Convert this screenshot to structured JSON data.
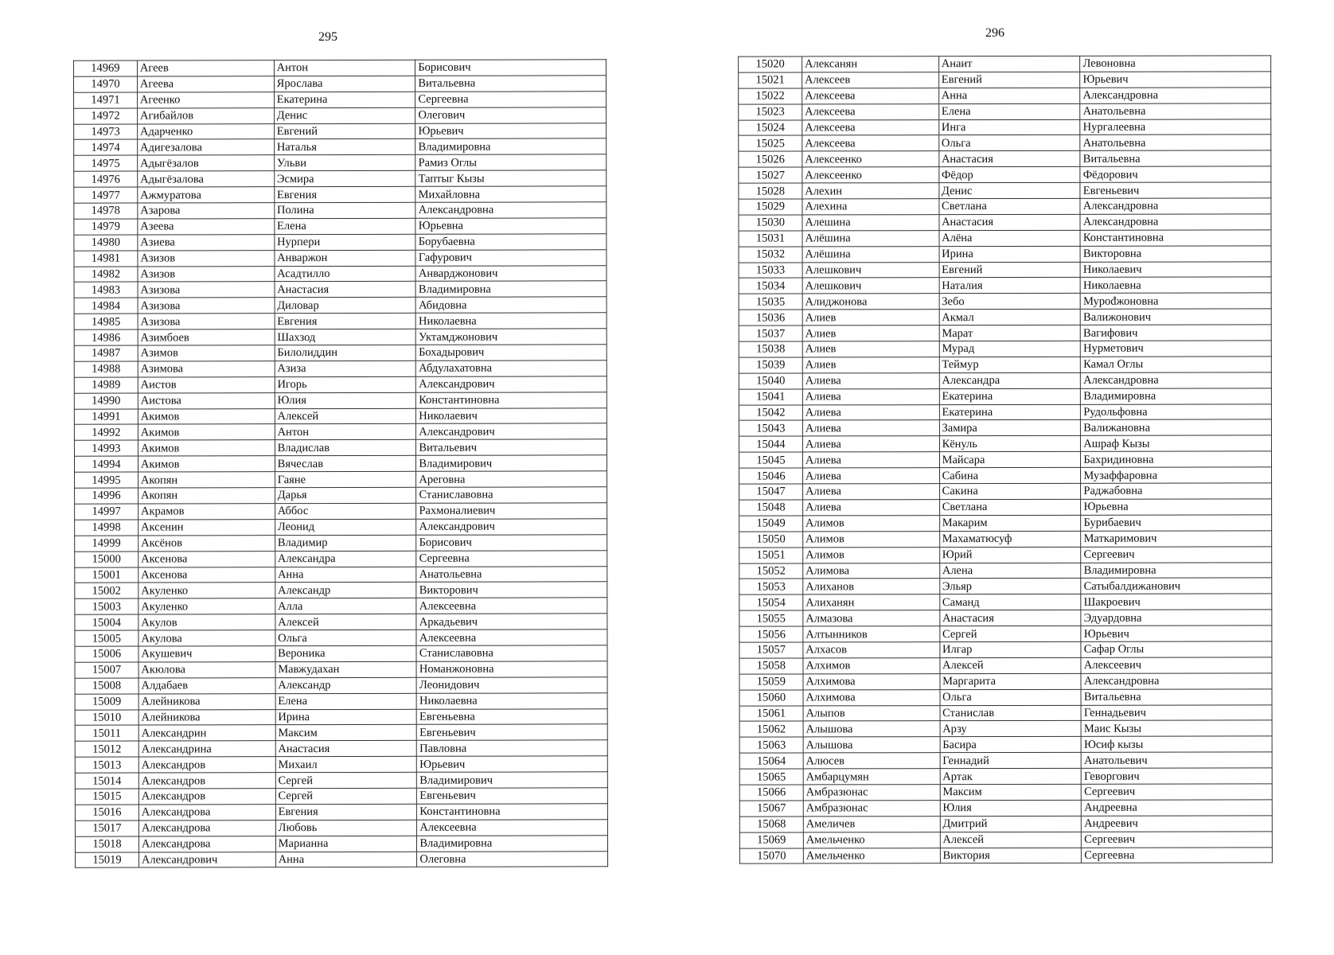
{
  "left_page": {
    "page_number": "295",
    "rows": [
      [
        "14969",
        "Агеев",
        "Антон",
        "Борисович"
      ],
      [
        "14970",
        "Агеева",
        "Ярослава",
        "Витальевна"
      ],
      [
        "14971",
        "Агеенко",
        "Екатерина",
        "Сергеевна"
      ],
      [
        "14972",
        "Агибайлов",
        "Денис",
        "Олегович"
      ],
      [
        "14973",
        "Адарченко",
        "Евгений",
        "Юрьевич"
      ],
      [
        "14974",
        "Адигезалова",
        "Наталья",
        "Владимировна"
      ],
      [
        "14975",
        "Адыгёзалов",
        "Ульви",
        "Рамиз Оглы"
      ],
      [
        "14976",
        "Адыгёзалова",
        "Эсмира",
        "Таптыг Кызы"
      ],
      [
        "14977",
        "Ажмуратова",
        "Евгения",
        "Михайловна"
      ],
      [
        "14978",
        "Азарова",
        "Полина",
        "Александровна"
      ],
      [
        "14979",
        "Азеева",
        "Елена",
        "Юрьевна"
      ],
      [
        "14980",
        "Азиева",
        "Нурпери",
        "Борубаевна"
      ],
      [
        "14981",
        "Азизов",
        "Анваржон",
        "Гафурович"
      ],
      [
        "14982",
        "Азизов",
        "Асадтилло",
        "Анварджонович"
      ],
      [
        "14983",
        "Азизова",
        "Анастасия",
        "Владимировна"
      ],
      [
        "14984",
        "Азизова",
        "Диловар",
        "Абидовна"
      ],
      [
        "14985",
        "Азизова",
        "Евгения",
        "Николаевна"
      ],
      [
        "14986",
        "Азимбоев",
        "Шахзод",
        "Уктамджонович"
      ],
      [
        "14987",
        "Азимов",
        "Билолиддин",
        "Бохадырович"
      ],
      [
        "14988",
        "Азимова",
        "Азиза",
        "Абдулахатовна"
      ],
      [
        "14989",
        "Аистов",
        "Игорь",
        "Александрович"
      ],
      [
        "14990",
        "Аистова",
        "Юлия",
        "Константиновна"
      ],
      [
        "14991",
        "Акимов",
        "Алексей",
        "Николаевич"
      ],
      [
        "14992",
        "Акимов",
        "Антон",
        "Александрович"
      ],
      [
        "14993",
        "Акимов",
        "Владислав",
        "Витальевич"
      ],
      [
        "14994",
        "Акимов",
        "Вячеслав",
        "Владимирович"
      ],
      [
        "14995",
        "Акопян",
        "Гаяне",
        "Ареговна"
      ],
      [
        "14996",
        "Акопян",
        "Дарья",
        "Станиславовна"
      ],
      [
        "14997",
        "Акрамов",
        "Аббос",
        "Рахмоналиевич"
      ],
      [
        "14998",
        "Аксенин",
        "Леонид",
        "Александрович"
      ],
      [
        "14999",
        "Аксёнов",
        "Владимир",
        "Борисович"
      ],
      [
        "15000",
        "Аксенова",
        "Александра",
        "Сергеевна"
      ],
      [
        "15001",
        "Аксенова",
        "Анна",
        "Анатольевна"
      ],
      [
        "15002",
        "Акуленко",
        "Александр",
        "Викторович"
      ],
      [
        "15003",
        "Акуленко",
        "Алла",
        "Алексеевна"
      ],
      [
        "15004",
        "Акулов",
        "Алексей",
        "Аркадьевич"
      ],
      [
        "15005",
        "Акулова",
        "Ольга",
        "Алексеевна"
      ],
      [
        "15006",
        "Акушевич",
        "Вероника",
        "Станиславовна"
      ],
      [
        "15007",
        "Акюлова",
        "Мавжудахан",
        "Номанжоновна"
      ],
      [
        "15008",
        "Алдабаев",
        "Александр",
        "Леонидович"
      ],
      [
        "15009",
        "Алейникова",
        "Елена",
        "Николаевна"
      ],
      [
        "15010",
        "Алейникова",
        "Ирина",
        "Евгеньевна"
      ],
      [
        "15011",
        "Александрин",
        "Максим",
        "Евгеньевич"
      ],
      [
        "15012",
        "Александрина",
        "Анастасия",
        "Павловна"
      ],
      [
        "15013",
        "Александров",
        "Михаил",
        "Юрьевич"
      ],
      [
        "15014",
        "Александров",
        "Сергей",
        "Владимирович"
      ],
      [
        "15015",
        "Александров",
        "Сергей",
        "Евгеньевич"
      ],
      [
        "15016",
        "Александрова",
        "Евгения",
        "Константиновна"
      ],
      [
        "15017",
        "Александрова",
        "Любовь",
        "Алексеевна"
      ],
      [
        "15018",
        "Александрова",
        "Марианна",
        "Владимировна"
      ],
      [
        "15019",
        "Александрович",
        "Анна",
        "Олеговна"
      ]
    ]
  },
  "right_page": {
    "page_number": "296",
    "rows": [
      [
        "15020",
        "Алексанян",
        "Анаит",
        "Левоновна"
      ],
      [
        "15021",
        "Алексеев",
        "Евгений",
        "Юрьевич"
      ],
      [
        "15022",
        "Алексеева",
        "Анна",
        "Александровна"
      ],
      [
        "15023",
        "Алексеева",
        "Елена",
        "Анатольевна"
      ],
      [
        "15024",
        "Алексеева",
        "Инга",
        "Нургалеевна"
      ],
      [
        "15025",
        "Алексеева",
        "Ольга",
        "Анатольевна"
      ],
      [
        "15026",
        "Алексеенко",
        "Анастасия",
        "Витальевна"
      ],
      [
        "15027",
        "Алексеенко",
        "Фёдор",
        "Фёдорович"
      ],
      [
        "15028",
        "Алехин",
        "Денис",
        "Евгеньевич"
      ],
      [
        "15029",
        "Алехина",
        "Светлана",
        "Александровна"
      ],
      [
        "15030",
        "Алешина",
        "Анастасия",
        "Александровна"
      ],
      [
        "15031",
        "Алёшина",
        "Алёна",
        "Константиновна"
      ],
      [
        "15032",
        "Алёшина",
        "Ирина",
        "Викторовна"
      ],
      [
        "15033",
        "Алешкович",
        "Евгений",
        "Николаевич"
      ],
      [
        "15034",
        "Алешкович",
        "Наталия",
        "Николаевна"
      ],
      [
        "15035",
        "Алиджонова",
        "Зебо",
        "Мурođжоновна"
      ],
      [
        "15036",
        "Алиев",
        "Акмал",
        "Валижонович"
      ],
      [
        "15037",
        "Алиев",
        "Марат",
        "Вагифович"
      ],
      [
        "15038",
        "Алиев",
        "Мурад",
        "Нурметович"
      ],
      [
        "15039",
        "Алиев",
        "Теймур",
        "Камал Оглы"
      ],
      [
        "15040",
        "Алиева",
        "Александра",
        "Александровна"
      ],
      [
        "15041",
        "Алиева",
        "Екатерина",
        "Владимировна"
      ],
      [
        "15042",
        "Алиева",
        "Екатерина",
        "Рудольфовна"
      ],
      [
        "15043",
        "Алиева",
        "Замира",
        "Валижановна"
      ],
      [
        "15044",
        "Алиева",
        "Кёнуль",
        "Ашраф Кызы"
      ],
      [
        "15045",
        "Алиева",
        "Майсара",
        "Бахридиновна"
      ],
      [
        "15046",
        "Алиева",
        "Сабина",
        "Музаффаровна"
      ],
      [
        "15047",
        "Алиева",
        "Сакина",
        "Раджабовна"
      ],
      [
        "15048",
        "Алиева",
        "Светлана",
        "Юрьевна"
      ],
      [
        "15049",
        "Алимов",
        "Макарим",
        "Бурибаевич"
      ],
      [
        "15050",
        "Алимов",
        "Махаматюсуф",
        "Маткаримович"
      ],
      [
        "15051",
        "Алимов",
        "Юрий",
        "Сергеевич"
      ],
      [
        "15052",
        "Алимова",
        "Алена",
        "Владимировна"
      ],
      [
        "15053",
        "Алиханов",
        "Эльяр",
        "Сатыбалдижанович"
      ],
      [
        "15054",
        "Алиханян",
        "Саманд",
        "Шакроевич"
      ],
      [
        "15055",
        "Алмазова",
        "Анастасия",
        "Эдуардовна"
      ],
      [
        "15056",
        "Алтынников",
        "Сергей",
        "Юрьевич"
      ],
      [
        "15057",
        "Алхасов",
        "Илгар",
        "Сафар Оглы"
      ],
      [
        "15058",
        "Алхимов",
        "Алексей",
        "Алексеевич"
      ],
      [
        "15059",
        "Алхимова",
        "Маргарита",
        "Александровна"
      ],
      [
        "15060",
        "Алхимова",
        "Ольга",
        "Витальевна"
      ],
      [
        "15061",
        "Алыпов",
        "Станислав",
        "Геннадьевич"
      ],
      [
        "15062",
        "Алышова",
        "Арзу",
        "Маис Кызы"
      ],
      [
        "15063",
        "Алышова",
        "Басира",
        "Юсиф кызы"
      ],
      [
        "15064",
        "Алюсев",
        "Геннадий",
        "Анатольевич"
      ],
      [
        "15065",
        "Амбарцумян",
        "Артак",
        "Геворгович"
      ],
      [
        "15066",
        "Амбразюнас",
        "Максим",
        "Сергеевич"
      ],
      [
        "15067",
        "Амбразюнас",
        "Юлия",
        "Андреевна"
      ],
      [
        "15068",
        "Амеличев",
        "Дмитрий",
        "Андреевич"
      ],
      [
        "15069",
        "Амельченко",
        "Алексей",
        "Сергеевич"
      ],
      [
        "15070",
        "Амельченко",
        "Виктория",
        "Сергеевна"
      ]
    ]
  }
}
